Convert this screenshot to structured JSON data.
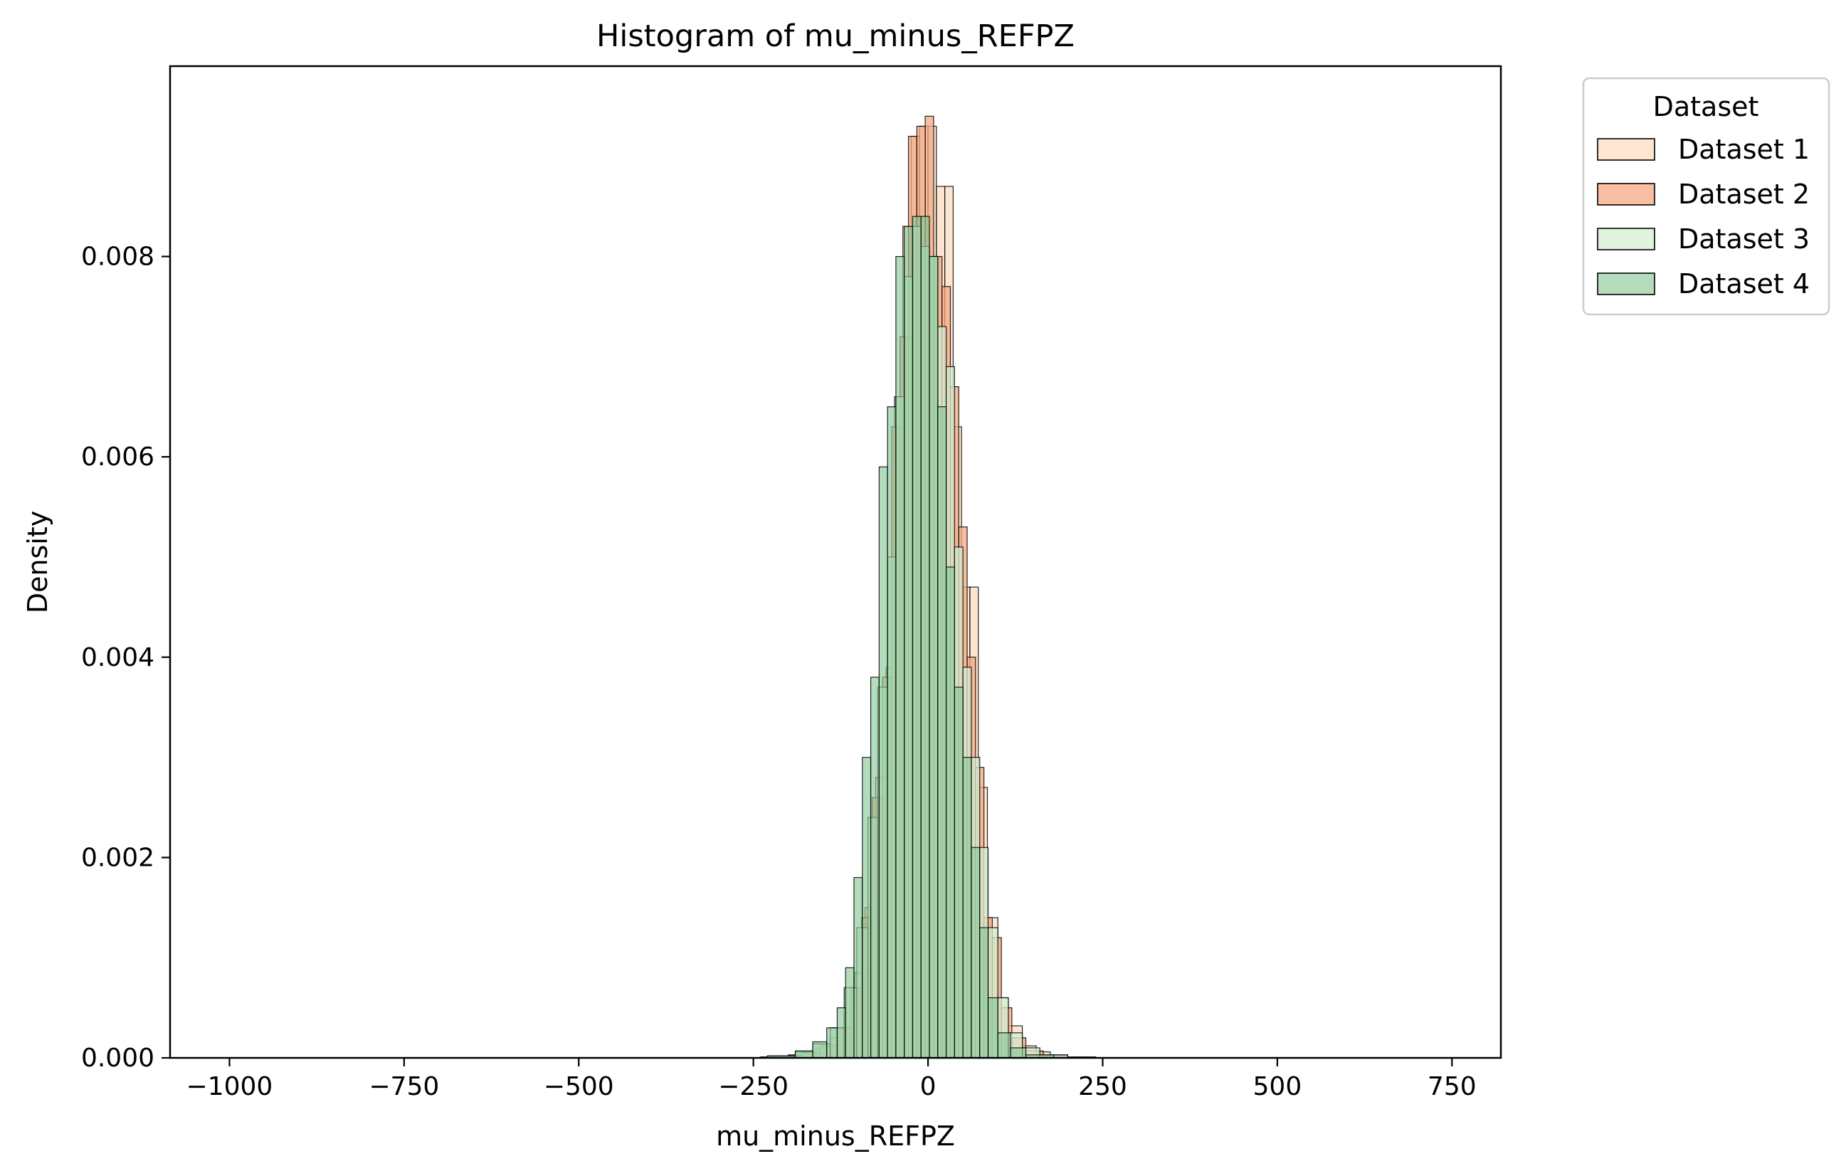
{
  "chart_data": {
    "type": "histogram",
    "title": "Histogram of mu_minus_REFPZ",
    "xlabel": "mu_minus_REFPZ",
    "ylabel": "Density",
    "xlim": [
      -1085,
      820
    ],
    "ylim": [
      0,
      0.0099
    ],
    "x_ticks": [
      -1000,
      -750,
      -500,
      -250,
      0,
      250,
      500,
      750
    ],
    "x_tick_labels": [
      "−1000",
      "−750",
      "−500",
      "−250",
      "0",
      "250",
      "500",
      "750"
    ],
    "y_ticks": [
      0,
      0.002,
      0.004,
      0.006,
      0.008
    ],
    "y_tick_labels": [
      "0.000",
      "0.002",
      "0.004",
      "0.006",
      "0.008"
    ],
    "grid": false,
    "legend": {
      "title": "Dataset",
      "placement": "outside-top-right"
    },
    "series": [
      {
        "name": "Dataset 1",
        "color": "#fcdcc2",
        "edge": "#000000",
        "opacity": 0.75,
        "bins": [
          {
            "x0": -240,
            "x1": -200,
            "y": 1e-05
          },
          {
            "x0": -200,
            "x1": -180,
            "y": 3e-05
          },
          {
            "x0": -180,
            "x1": -160,
            "y": 6e-05
          },
          {
            "x0": -160,
            "x1": -140,
            "y": 0.0001
          },
          {
            "x0": -140,
            "x1": -120,
            "y": 0.0002
          },
          {
            "x0": -120,
            "x1": -105,
            "y": 0.00045
          },
          {
            "x0": -105,
            "x1": -90,
            "y": 0.00085
          },
          {
            "x0": -90,
            "x1": -75,
            "y": 0.0015
          },
          {
            "x0": -75,
            "x1": -60,
            "y": 0.0028
          },
          {
            "x0": -60,
            "x1": -48,
            "y": 0.0039
          },
          {
            "x0": -48,
            "x1": -36,
            "y": 0.0066
          },
          {
            "x0": -36,
            "x1": -24,
            "y": 0.0083
          },
          {
            "x0": -24,
            "x1": -12,
            "y": 0.0092
          },
          {
            "x0": -12,
            "x1": 0,
            "y": 0.0093
          },
          {
            "x0": 0,
            "x1": 12,
            "y": 0.0093
          },
          {
            "x0": 12,
            "x1": 24,
            "y": 0.0087
          },
          {
            "x0": 24,
            "x1": 36,
            "y": 0.0087
          },
          {
            "x0": 36,
            "x1": 48,
            "y": 0.0063
          },
          {
            "x0": 48,
            "x1": 60,
            "y": 0.0047
          },
          {
            "x0": 60,
            "x1": 72,
            "y": 0.0047
          },
          {
            "x0": 72,
            "x1": 85,
            "y": 0.0027
          },
          {
            "x0": 85,
            "x1": 100,
            "y": 0.0014
          },
          {
            "x0": 100,
            "x1": 115,
            "y": 0.0006
          },
          {
            "x0": 115,
            "x1": 135,
            "y": 0.00032
          },
          {
            "x0": 135,
            "x1": 155,
            "y": 0.00012
          },
          {
            "x0": 155,
            "x1": 175,
            "y": 6e-05
          },
          {
            "x0": 175,
            "x1": 200,
            "y": 3e-05
          },
          {
            "x0": 200,
            "x1": 240,
            "y": 1e-05
          }
        ]
      },
      {
        "name": "Dataset 2",
        "color": "#f4a882",
        "edge": "#000000",
        "opacity": 0.75,
        "bins": [
          {
            "x0": -220,
            "x1": -180,
            "y": 2e-05
          },
          {
            "x0": -180,
            "x1": -155,
            "y": 5e-05
          },
          {
            "x0": -155,
            "x1": -130,
            "y": 0.00012
          },
          {
            "x0": -130,
            "x1": -110,
            "y": 0.0003
          },
          {
            "x0": -110,
            "x1": -95,
            "y": 0.0007
          },
          {
            "x0": -95,
            "x1": -80,
            "y": 0.0014
          },
          {
            "x0": -80,
            "x1": -65,
            "y": 0.0026
          },
          {
            "x0": -65,
            "x1": -52,
            "y": 0.0038
          },
          {
            "x0": -52,
            "x1": -40,
            "y": 0.0063
          },
          {
            "x0": -40,
            "x1": -28,
            "y": 0.0072
          },
          {
            "x0": -28,
            "x1": -16,
            "y": 0.0092
          },
          {
            "x0": -16,
            "x1": -4,
            "y": 0.0093
          },
          {
            "x0": -4,
            "x1": 8,
            "y": 0.0094
          },
          {
            "x0": 8,
            "x1": 20,
            "y": 0.008
          },
          {
            "x0": 20,
            "x1": 32,
            "y": 0.0077
          },
          {
            "x0": 32,
            "x1": 44,
            "y": 0.0067
          },
          {
            "x0": 44,
            "x1": 56,
            "y": 0.0053
          },
          {
            "x0": 56,
            "x1": 68,
            "y": 0.004
          },
          {
            "x0": 68,
            "x1": 80,
            "y": 0.0029
          },
          {
            "x0": 80,
            "x1": 92,
            "y": 0.0014
          },
          {
            "x0": 92,
            "x1": 105,
            "y": 0.0012
          },
          {
            "x0": 105,
            "x1": 120,
            "y": 0.0005
          },
          {
            "x0": 120,
            "x1": 140,
            "y": 0.0002
          },
          {
            "x0": 140,
            "x1": 165,
            "y": 7e-05
          },
          {
            "x0": 165,
            "x1": 200,
            "y": 2e-05
          }
        ]
      },
      {
        "name": "Dataset 3",
        "color": "#d4efd2",
        "edge": "#000000",
        "opacity": 0.75,
        "bins": [
          {
            "x0": -230,
            "x1": -190,
            "y": 2e-05
          },
          {
            "x0": -190,
            "x1": -165,
            "y": 6e-05
          },
          {
            "x0": -165,
            "x1": -140,
            "y": 0.00014
          },
          {
            "x0": -140,
            "x1": -120,
            "y": 0.0003
          },
          {
            "x0": -120,
            "x1": -102,
            "y": 0.0007
          },
          {
            "x0": -102,
            "x1": -86,
            "y": 0.0013
          },
          {
            "x0": -86,
            "x1": -72,
            "y": 0.0024
          },
          {
            "x0": -72,
            "x1": -58,
            "y": 0.0037
          },
          {
            "x0": -58,
            "x1": -46,
            "y": 0.005
          },
          {
            "x0": -46,
            "x1": -34,
            "y": 0.0066
          },
          {
            "x0": -34,
            "x1": -22,
            "y": 0.0078
          },
          {
            "x0": -22,
            "x1": -10,
            "y": 0.0083
          },
          {
            "x0": -10,
            "x1": 2,
            "y": 0.0081
          },
          {
            "x0": 2,
            "x1": 14,
            "y": 0.008
          },
          {
            "x0": 14,
            "x1": 26,
            "y": 0.0073
          },
          {
            "x0": 26,
            "x1": 38,
            "y": 0.0069
          },
          {
            "x0": 38,
            "x1": 50,
            "y": 0.0051
          },
          {
            "x0": 50,
            "x1": 62,
            "y": 0.0039
          },
          {
            "x0": 62,
            "x1": 74,
            "y": 0.003
          },
          {
            "x0": 74,
            "x1": 86,
            "y": 0.0021
          },
          {
            "x0": 86,
            "x1": 100,
            "y": 0.0013
          },
          {
            "x0": 100,
            "x1": 115,
            "y": 0.0006
          },
          {
            "x0": 115,
            "x1": 135,
            "y": 0.00025
          },
          {
            "x0": 135,
            "x1": 160,
            "y": 0.0001
          },
          {
            "x0": 160,
            "x1": 200,
            "y": 3e-05
          }
        ]
      },
      {
        "name": "Dataset 4",
        "color": "#8bc99a",
        "edge": "#000000",
        "opacity": 0.65,
        "bins": [
          {
            "x0": -230,
            "x1": -190,
            "y": 2e-05
          },
          {
            "x0": -190,
            "x1": -165,
            "y": 7e-05
          },
          {
            "x0": -165,
            "x1": -145,
            "y": 0.00016
          },
          {
            "x0": -145,
            "x1": -130,
            "y": 0.0003
          },
          {
            "x0": -130,
            "x1": -118,
            "y": 0.0005
          },
          {
            "x0": -118,
            "x1": -106,
            "y": 0.0009
          },
          {
            "x0": -106,
            "x1": -94,
            "y": 0.0018
          },
          {
            "x0": -94,
            "x1": -82,
            "y": 0.003
          },
          {
            "x0": -82,
            "x1": -70,
            "y": 0.0038
          },
          {
            "x0": -70,
            "x1": -58,
            "y": 0.0059
          },
          {
            "x0": -58,
            "x1": -46,
            "y": 0.0065
          },
          {
            "x0": -46,
            "x1": -34,
            "y": 0.008
          },
          {
            "x0": -34,
            "x1": -22,
            "y": 0.0083
          },
          {
            "x0": -22,
            "x1": -10,
            "y": 0.0084
          },
          {
            "x0": -10,
            "x1": 2,
            "y": 0.0084
          },
          {
            "x0": 2,
            "x1": 14,
            "y": 0.008
          },
          {
            "x0": 14,
            "x1": 26,
            "y": 0.0065
          },
          {
            "x0": 26,
            "x1": 38,
            "y": 0.0049
          },
          {
            "x0": 38,
            "x1": 50,
            "y": 0.0037
          },
          {
            "x0": 50,
            "x1": 62,
            "y": 0.003
          },
          {
            "x0": 62,
            "x1": 74,
            "y": 0.0021
          },
          {
            "x0": 74,
            "x1": 86,
            "y": 0.0013
          },
          {
            "x0": 86,
            "x1": 100,
            "y": 0.0006
          },
          {
            "x0": 100,
            "x1": 118,
            "y": 0.00025
          },
          {
            "x0": 118,
            "x1": 140,
            "y": 0.0001
          },
          {
            "x0": 140,
            "x1": 180,
            "y": 3e-05
          }
        ]
      }
    ]
  }
}
